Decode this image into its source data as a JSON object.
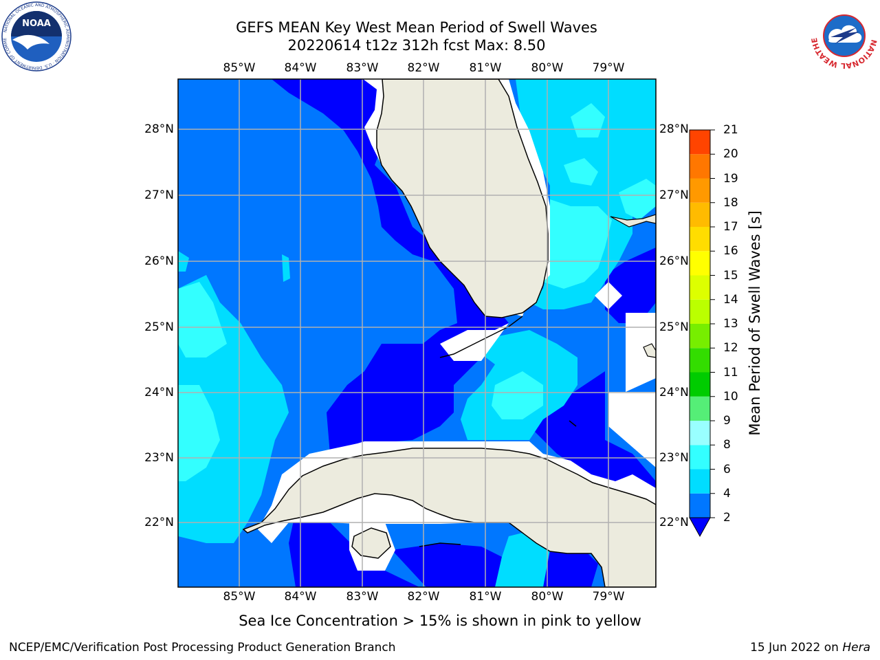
{
  "title": {
    "line1": "GEFS MEAN Key West Mean Period of Swell Waves",
    "line2": "20220614 t12z 312h fcst   Max: 8.50"
  },
  "logos": {
    "left": "noaa-logo",
    "right": "nws-logo",
    "left_ring_text": "NATIONAL OCEANIC AND ATMOSPHERIC ADMINISTRATION · U.S. DEPARTMENT OF COMMERCE",
    "left_center_text": "NOAA",
    "right_ring_text": "NATIONAL WEATHER SERVICE"
  },
  "map": {
    "lon_labels": [
      "85°W",
      "84°W",
      "83°W",
      "82°W",
      "81°W",
      "80°W",
      "79°W"
    ],
    "lat_labels": [
      "28°N",
      "27°N",
      "26°N",
      "25°N",
      "24°N",
      "23°N",
      "22°N"
    ],
    "lon_range": [
      -86,
      -78.3
    ],
    "lat_range": [
      21.05,
      28.75
    ],
    "grid": true,
    "colors": {
      "land": "#ecebde",
      "missing": "#ffffff",
      "gridline": "#b0b0b0",
      "coast": "#000000"
    }
  },
  "colorbar": {
    "label": "Mean Period of Swell Waves [s]",
    "ticks": [
      "2",
      "4",
      "6",
      "8",
      "9",
      "10",
      "11",
      "12",
      "13",
      "14",
      "15",
      "16",
      "17",
      "18",
      "19",
      "20",
      "21"
    ],
    "colors": [
      "#0077ff",
      "#00ddff",
      "#33ffff",
      "#99ffff",
      "#55ee77",
      "#00cc00",
      "#33dd00",
      "#77ee00",
      "#bbff00",
      "#ddff00",
      "#ffff00",
      "#ffdd00",
      "#ffbb00",
      "#ff9900",
      "#ff7700",
      "#ff4400",
      "#ff0000"
    ],
    "under_color": "#0000ff",
    "extend": "min"
  },
  "note": "Sea Ice Concentration > 15% is shown in pink to yellow",
  "credit": {
    "left": "NCEP/EMC/Verification Post Processing Product Generation Branch",
    "right_prefix": "15 Jun 2022 on ",
    "right_host": "Hera"
  }
}
